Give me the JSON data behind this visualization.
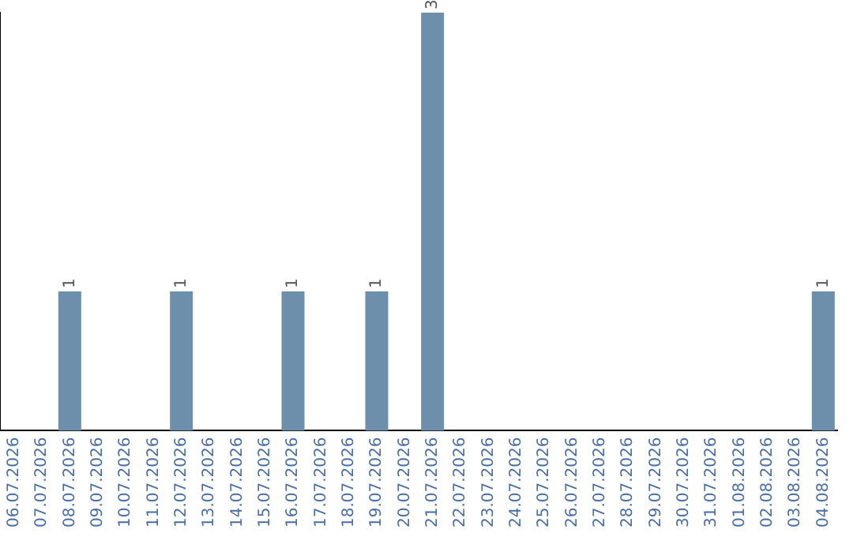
{
  "chart_data": {
    "type": "bar",
    "categories": [
      "06.07.2026",
      "07.07.2026",
      "08.07.2026",
      "09.07.2026",
      "10.07.2026",
      "11.07.2026",
      "12.07.2026",
      "13.07.2026",
      "14.07.2026",
      "15.07.2026",
      "16.07.2026",
      "17.07.2026",
      "18.07.2026",
      "19.07.2026",
      "20.07.2026",
      "21.07.2026",
      "22.07.2026",
      "23.07.2026",
      "24.07.2026",
      "25.07.2026",
      "26.07.2026",
      "27.07.2026",
      "28.07.2026",
      "29.07.2026",
      "30.07.2026",
      "31.07.2026",
      "01.08.2026",
      "02.08.2026",
      "03.08.2026",
      "04.08.2026"
    ],
    "values": [
      0,
      0,
      1,
      0,
      0,
      0,
      1,
      0,
      0,
      0,
      1,
      0,
      0,
      1,
      0,
      3,
      0,
      0,
      0,
      0,
      0,
      0,
      0,
      0,
      0,
      0,
      0,
      0,
      0,
      1
    ],
    "value_labels": [
      null,
      null,
      "1",
      null,
      null,
      null,
      "1",
      null,
      null,
      null,
      "1",
      null,
      null,
      "1",
      null,
      "3",
      null,
      null,
      null,
      null,
      null,
      null,
      null,
      null,
      null,
      null,
      null,
      null,
      null,
      "1"
    ],
    "color": "#6d8fac",
    "grid": false,
    "legend": false,
    "tick_labels": "x"
  }
}
